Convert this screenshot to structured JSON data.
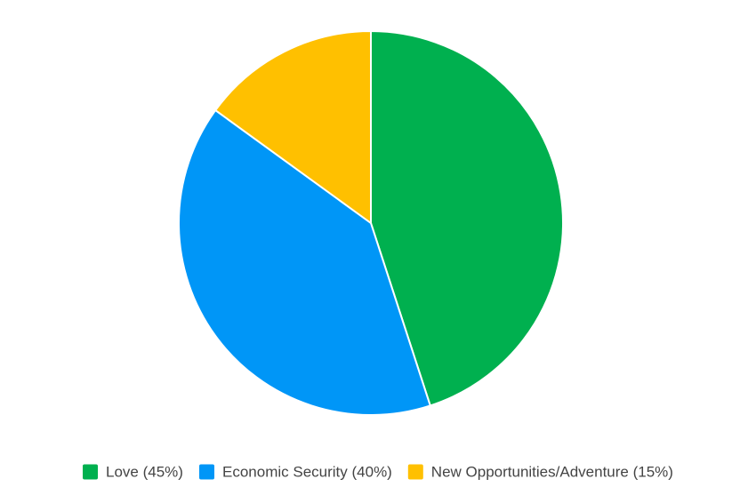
{
  "chart_data": {
    "type": "pie",
    "title": "",
    "start_angle_deg": 0,
    "direction": "clockwise",
    "legend_position": "bottom",
    "slices": [
      {
        "label": "Love (45%)",
        "value": 45,
        "color": "#00b04f"
      },
      {
        "label": "Economic Security (40%)",
        "value": 40,
        "color": "#0096f7"
      },
      {
        "label": "New Opportunities/Adventure (15%)",
        "value": 15,
        "color": "#ffc000"
      }
    ]
  }
}
